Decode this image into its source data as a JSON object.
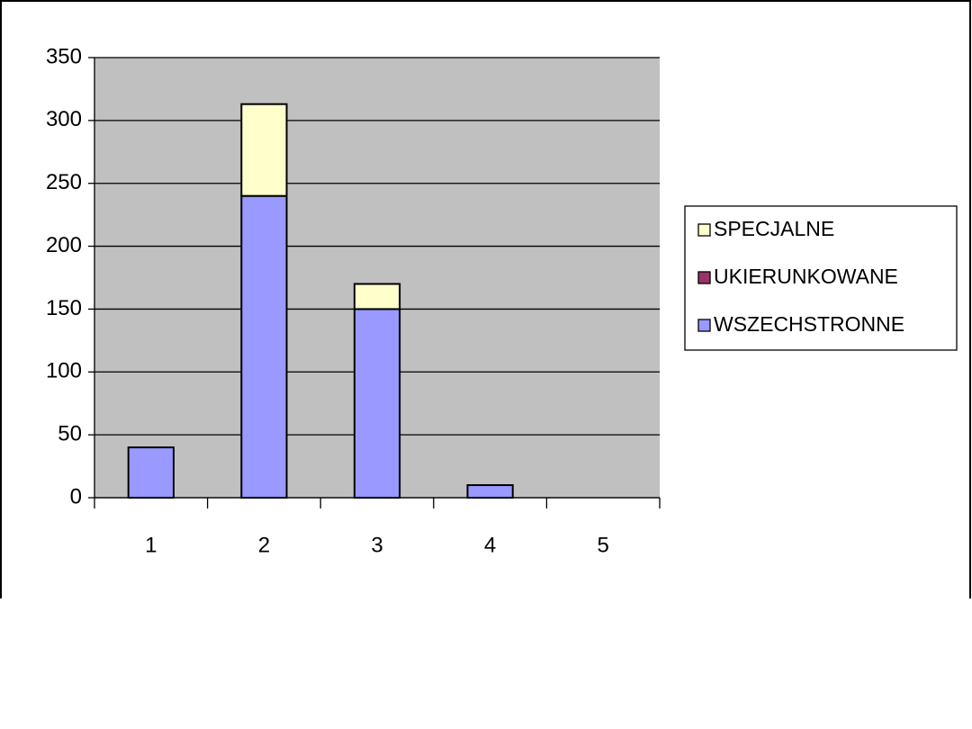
{
  "chart_data": {
    "type": "stacked-bar",
    "categories": [
      "1",
      "2",
      "3",
      "4",
      "5"
    ],
    "series": [
      {
        "name": "WSZECHSTRONNE",
        "color": "#9999ff",
        "values": [
          40,
          240,
          150,
          10,
          0
        ]
      },
      {
        "name": "UKIERUNKOWANE",
        "color": "#993366",
        "values": [
          0,
          0,
          0,
          0,
          0
        ]
      },
      {
        "name": "SPECJALNE",
        "color": "#ffffcc",
        "values": [
          0,
          73,
          20,
          0,
          0
        ]
      }
    ],
    "ylim": [
      0,
      350
    ],
    "yticks": [
      0,
      50,
      100,
      150,
      200,
      250,
      300,
      350
    ],
    "grid": true,
    "plot_background": "#c0c0c0",
    "legend": "right"
  }
}
